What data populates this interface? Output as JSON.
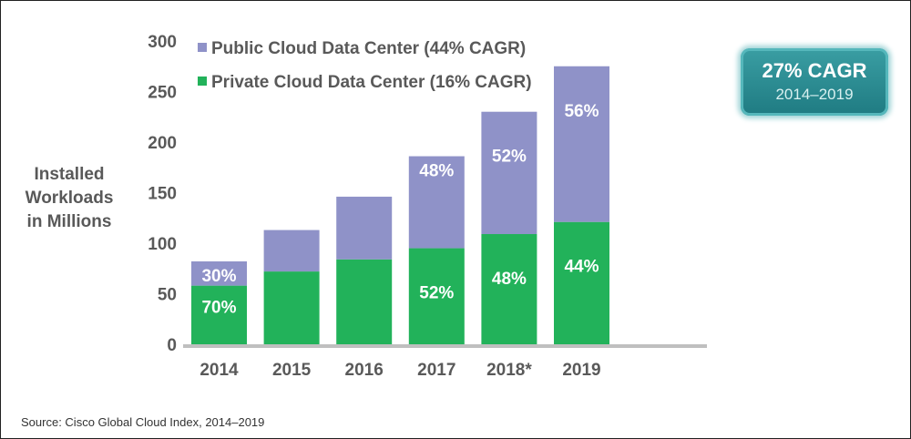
{
  "chart_data": {
    "type": "bar",
    "stacked": true,
    "categories": [
      "2014",
      "2015",
      "2016",
      "2017",
      "2018*",
      "2019"
    ],
    "series": [
      {
        "name": "Private Cloud Data Center (16% CAGR)",
        "color": "#22b25a",
        "values": [
          58,
          72,
          84,
          95,
          109,
          121
        ],
        "labels": [
          "70%",
          "",
          "",
          "52%",
          "48%",
          "44%"
        ]
      },
      {
        "name": "Public Cloud Data Center (44% CAGR)",
        "color": "#8f92c8",
        "values": [
          24,
          41,
          62,
          91,
          121,
          154
        ],
        "labels": [
          "30%",
          "",
          "",
          "48%",
          "52%",
          "56%"
        ]
      }
    ],
    "ylabel": [
      "Installed",
      "Workloads",
      "in Millions"
    ],
    "ylim": [
      0,
      300
    ],
    "yticks": [
      0,
      50,
      100,
      150,
      200,
      250,
      300
    ],
    "grid": false,
    "legend": "top-left"
  },
  "callout": {
    "title": "27% CAGR",
    "subtitle": "2014–2019"
  },
  "source": "Source: Cisco Global Cloud Index, 2014–2019"
}
